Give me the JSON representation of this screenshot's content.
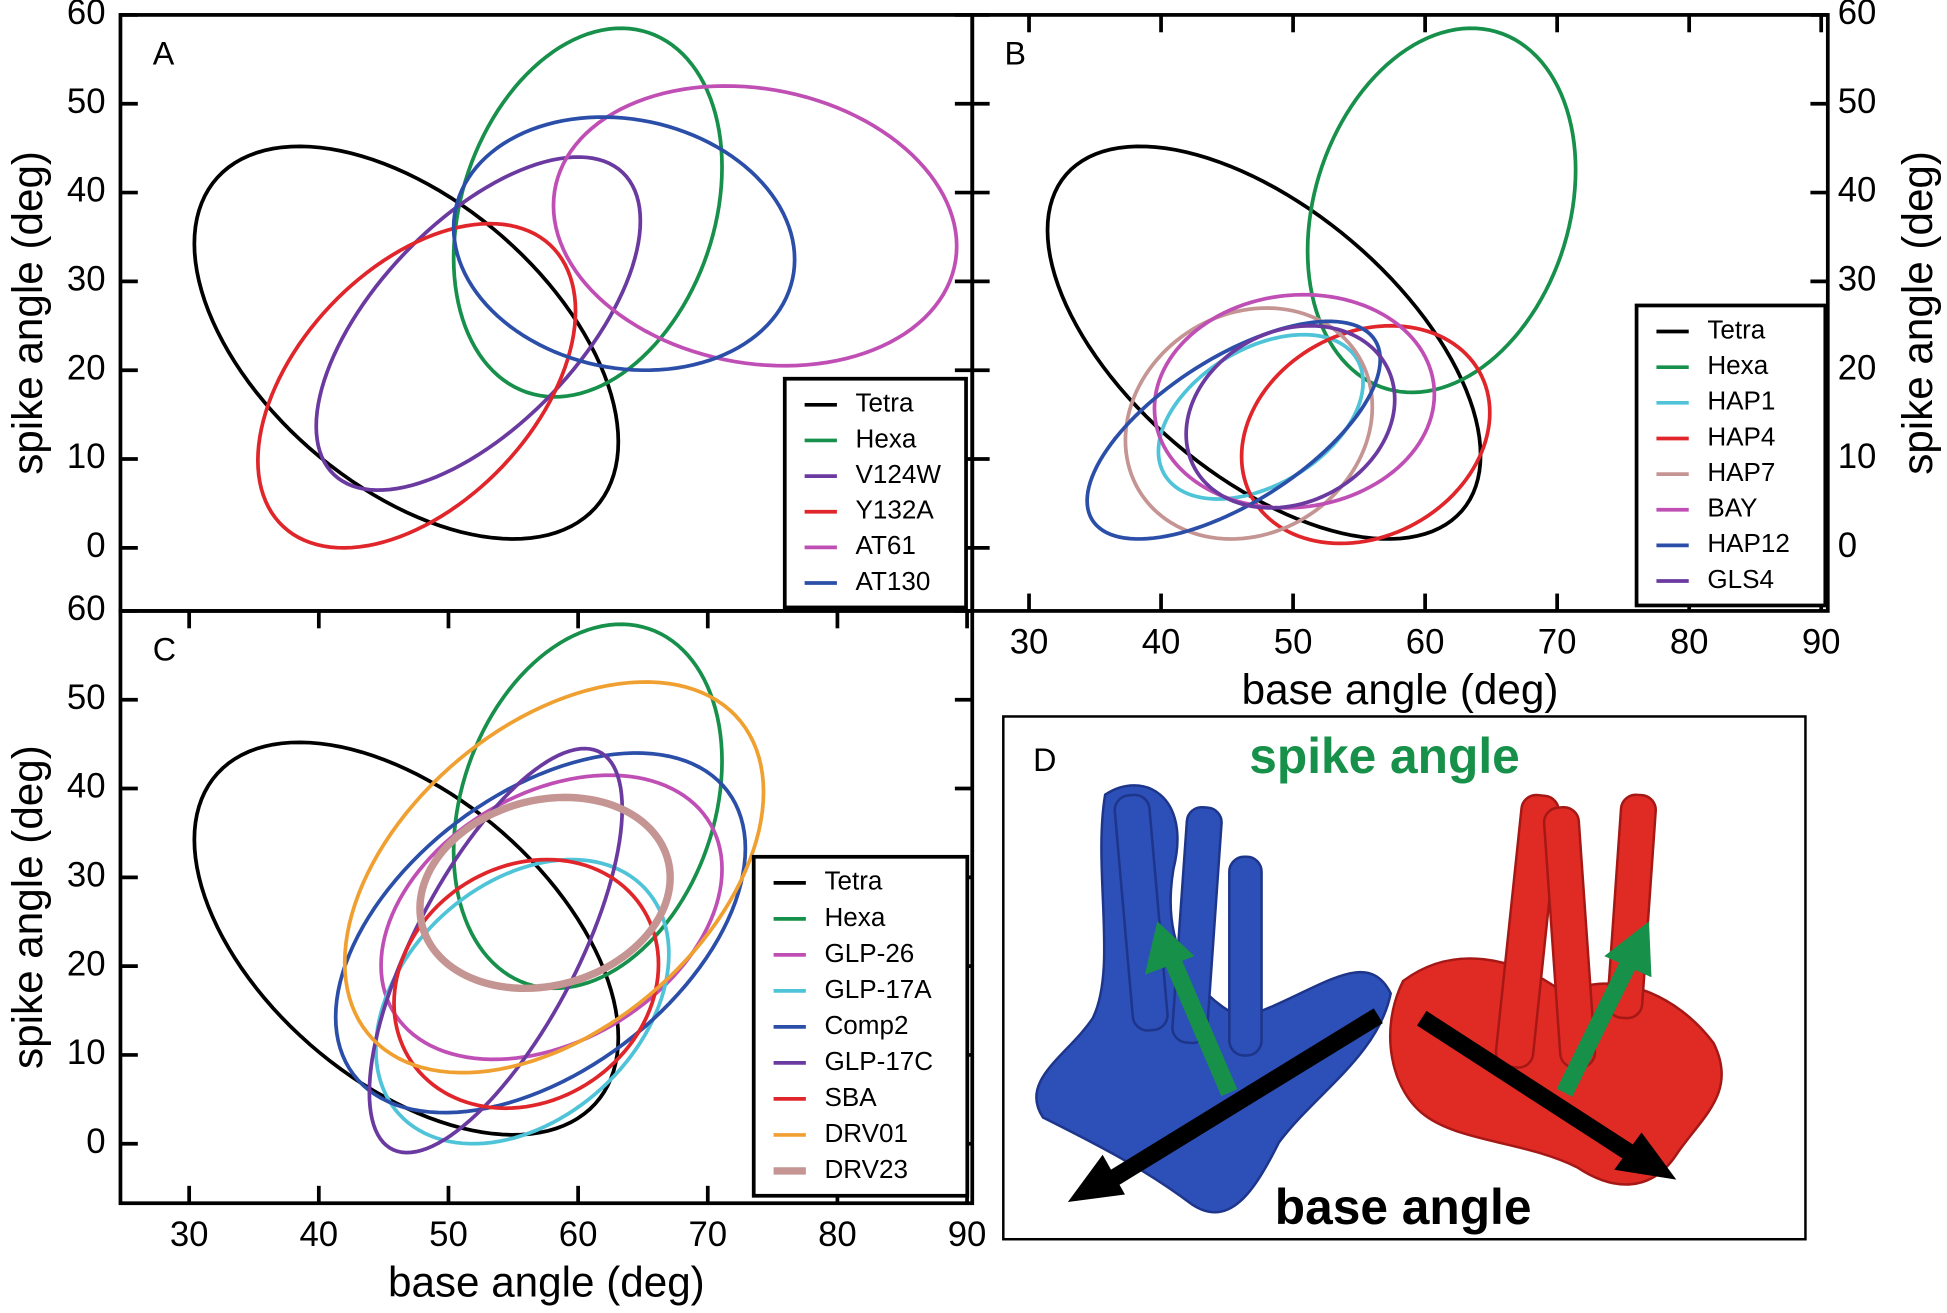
{
  "chart_data": [
    {
      "type": "ellipse",
      "panel_label": "A",
      "ylabel": "spike angle (deg)",
      "y_axis_side": "left",
      "xlim": [
        24.7,
        90.4
      ],
      "ylim": [
        -7.1,
        60
      ],
      "yticks": [
        0,
        10,
        20,
        30,
        40,
        50,
        60
      ],
      "legend": "lower right",
      "series": [
        {
          "name": "Tetra",
          "color": "#000000",
          "x_extent": [
            30.4,
            63.1
          ],
          "y_extent": [
            1,
            45.2
          ],
          "x_at_top": 38.5
        },
        {
          "name": "Hexa",
          "color": "#16904a",
          "x_extent": [
            50.4,
            71.1
          ],
          "y_extent": [
            17,
            58.5
          ],
          "x_at_top": 63.3
        },
        {
          "name": "V124W",
          "color": "#6a3aa0",
          "x_extent": [
            39.8,
            64.8
          ],
          "y_extent": [
            6.5,
            44
          ],
          "x_at_top": 60
        },
        {
          "name": "Y132A",
          "color": "#e0262a",
          "x_extent": [
            35.3,
            59.8
          ],
          "y_extent": [
            0,
            36.5
          ],
          "x_at_top": 53.2
        },
        {
          "name": "AT61",
          "color": "#c04fb5",
          "x_extent": [
            58.1,
            89.2
          ],
          "y_extent": [
            20.5,
            52
          ],
          "x_at_top": 71.4
        },
        {
          "name": "AT130",
          "color": "#2b4fa8",
          "x_extent": [
            50.4,
            76.7
          ],
          "y_extent": [
            20,
            48.5
          ],
          "x_at_top": 61.9
        }
      ]
    },
    {
      "type": "ellipse",
      "panel_label": "B",
      "xlabel": "base angle (deg)",
      "ylabel": "spike angle (deg)",
      "y_axis_side": "right",
      "xlim": [
        25.7,
        90.5
      ],
      "ylim": [
        -7.1,
        60
      ],
      "xticks": [
        30,
        40,
        50,
        60,
        70,
        80,
        90
      ],
      "yticks": [
        0,
        10,
        20,
        30,
        40,
        50,
        60
      ],
      "legend": "lower right",
      "series": [
        {
          "name": "Tetra",
          "color": "#000000",
          "x_extent": [
            31.4,
            64.2
          ],
          "y_extent": [
            1,
            45.2
          ],
          "x_at_top": 38.4
        },
        {
          "name": "Hexa",
          "color": "#16904a",
          "x_extent": [
            51.1,
            71.4
          ],
          "y_extent": [
            17.5,
            58.5
          ],
          "x_at_top": 63.5
        },
        {
          "name": "HAP1",
          "color": "#4fc3d8",
          "x_extent": [
            39.8,
            55.3
          ],
          "y_extent": [
            5.5,
            24
          ],
          "x_at_top": 50.8
        },
        {
          "name": "HAP4",
          "color": "#e0262a",
          "x_extent": [
            46.1,
            64.9
          ],
          "y_extent": [
            0.5,
            25
          ],
          "x_at_top": 57.4
        },
        {
          "name": "HAP7",
          "color": "#c49593",
          "x_extent": [
            37.3,
            56
          ],
          "y_extent": [
            1,
            27
          ],
          "x_at_top": 48
        },
        {
          "name": "BAY",
          "color": "#c04fb5",
          "x_extent": [
            39.5,
            60.7
          ],
          "y_extent": [
            4.5,
            28.5
          ],
          "x_at_top": 50.8
        },
        {
          "name": "HAP12",
          "color": "#2b4fa8",
          "x_extent": [
            34.4,
            56.6
          ],
          "y_extent": [
            1,
            25.5
          ],
          "x_at_top": 52.7
        },
        {
          "name": "GLS4",
          "color": "#6a3aa0",
          "x_extent": [
            41.9,
            57.7
          ],
          "y_extent": [
            4.5,
            25
          ],
          "x_at_top": 51.3
        }
      ]
    },
    {
      "type": "ellipse",
      "panel_label": "C",
      "xlabel": "base angle (deg)",
      "ylabel": "spike angle (deg)",
      "y_axis_side": "left",
      "xlim": [
        24.7,
        90.4
      ],
      "ylim": [
        -6.7,
        60
      ],
      "xticks": [
        30,
        40,
        50,
        60,
        70,
        80,
        90
      ],
      "yticks": [
        0,
        10,
        20,
        30,
        40,
        50,
        60
      ],
      "legend": "lower right",
      "series": [
        {
          "name": "Tetra",
          "color": "#000000",
          "x_extent": [
            30.4,
            63.1
          ],
          "y_extent": [
            1,
            45.2
          ],
          "x_at_top": 38.5
        },
        {
          "name": "Hexa",
          "color": "#16904a",
          "x_extent": [
            50.4,
            71.1
          ],
          "y_extent": [
            17.5,
            58.5
          ],
          "x_at_top": 63.3
        },
        {
          "name": "GLP-26",
          "color": "#c04fb5",
          "x_extent": [
            44.8,
            71.1
          ],
          "y_extent": [
            9.5,
            41.5
          ],
          "x_at_top": 62.4
        },
        {
          "name": "GLP-17A",
          "color": "#4fc3d8",
          "x_extent": [
            44.4,
            67
          ],
          "y_extent": [
            0,
            32
          ],
          "x_at_top": 59.5
        },
        {
          "name": "Comp2",
          "color": "#2b4fa8",
          "x_extent": [
            41.3,
            72.9
          ],
          "y_extent": [
            3.5,
            44
          ],
          "x_at_top": 64.5
        },
        {
          "name": "GLP-17C",
          "color": "#6a3aa0",
          "x_extent": [
            43.9,
            63.4
          ],
          "y_extent": [
            -1,
            44.5
          ],
          "x_at_top": 60.5
        },
        {
          "name": "SBA",
          "color": "#e0262a",
          "x_extent": [
            45.8,
            66.2
          ],
          "y_extent": [
            4,
            32
          ],
          "x_at_top": 57.6
        },
        {
          "name": "DRV01",
          "color": "#f0a030",
          "x_extent": [
            42,
            74.3
          ],
          "y_extent": [
            8,
            52
          ],
          "x_at_top": 65.2
        },
        {
          "name": "DRV23",
          "color": "#c49593",
          "x_extent": [
            47.8,
            67.1
          ],
          "y_extent": [
            17.5,
            39
          ],
          "x_at_top": 59,
          "width": 6
        }
      ]
    }
  ],
  "illustration": {
    "panel_label": "D",
    "spike_label": "spike angle",
    "base_label": "base angle"
  }
}
